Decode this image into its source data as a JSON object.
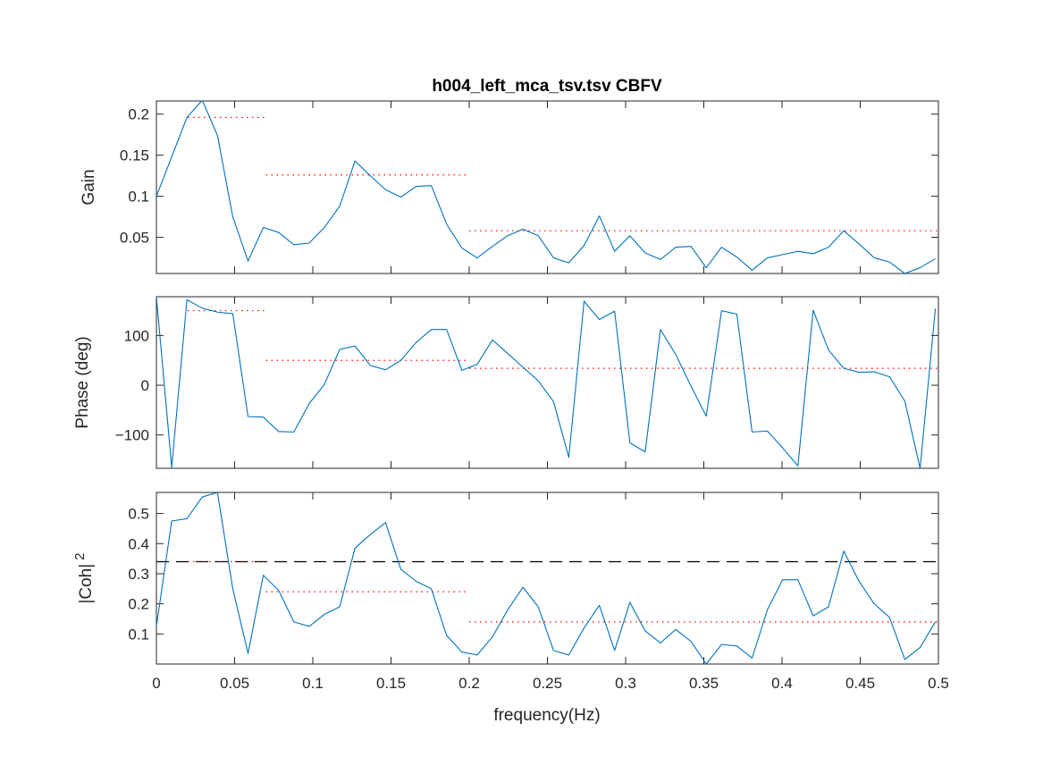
{
  "chart_data": {
    "type": "line",
    "title": "h004_left_mca_tsv.tsv CBFV",
    "xlabel": "frequency(Hz)",
    "xlim": [
      0,
      0.5
    ],
    "xticks": [
      0,
      0.05,
      0.1,
      0.15,
      0.2,
      0.25,
      0.3,
      0.35,
      0.4,
      0.45,
      0.5
    ],
    "xtick_labels": [
      "0",
      "0.05",
      "0.1",
      "0.15",
      "0.2",
      "0.25",
      "0.3",
      "0.35",
      "0.4",
      "0.45",
      "0.5"
    ],
    "x": [
      0,
      0.00977,
      0.01953,
      0.0293,
      0.03906,
      0.04883,
      0.05859,
      0.06836,
      0.07813,
      0.08789,
      0.09766,
      0.10742,
      0.11719,
      0.12695,
      0.13672,
      0.14648,
      0.15625,
      0.16602,
      0.17578,
      0.18555,
      0.19531,
      0.20508,
      0.21484,
      0.22461,
      0.23438,
      0.24414,
      0.25391,
      0.26367,
      0.27344,
      0.2832,
      0.29297,
      0.30273,
      0.3125,
      0.32227,
      0.33203,
      0.3418,
      0.35156,
      0.36133,
      0.37109,
      0.38086,
      0.39063,
      0.40039,
      0.41016,
      0.41992,
      0.42969,
      0.43945,
      0.44922,
      0.45898,
      0.46875,
      0.47852,
      0.48828,
      0.49805
    ],
    "panels": [
      {
        "ylabel": "Gain",
        "ylim": [
          0.006,
          0.216
        ],
        "yticks": [
          0.05,
          0.1,
          0.15,
          0.2
        ],
        "ytick_labels": [
          "0.05",
          "0.1",
          "0.15",
          "0.2"
        ],
        "series": [
          {
            "color": "#0072BD",
            "values": [
              0.1,
              0.148,
              0.196,
              0.217,
              0.174,
              0.075,
              0.021,
              0.062,
              0.056,
              0.041,
              0.043,
              0.062,
              0.088,
              0.143,
              0.125,
              0.108,
              0.099,
              0.112,
              0.113,
              0.066,
              0.037,
              0.025,
              0.039,
              0.052,
              0.06,
              0.052,
              0.025,
              0.019,
              0.04,
              0.076,
              0.033,
              0.052,
              0.031,
              0.023,
              0.038,
              0.039,
              0.013,
              0.038,
              0.026,
              0.01,
              0.025,
              0.029,
              0.033,
              0.03,
              0.038,
              0.058,
              0.042,
              0.025,
              0.02,
              0.006,
              0.013,
              0.024
            ]
          }
        ],
        "band_means": [
          {
            "x0": 0.02,
            "x1": 0.07,
            "y": 0.196
          },
          {
            "x0": 0.07,
            "x1": 0.2,
            "y": 0.126
          },
          {
            "x0": 0.2,
            "x1": 0.5,
            "y": 0.058
          }
        ]
      },
      {
        "ylabel": "Phase (deg)",
        "ylim": [
          -167,
          178
        ],
        "yticks": [
          -100,
          0,
          100
        ],
        "ytick_labels": [
          "−100",
          "0",
          "100"
        ],
        "series": [
          {
            "color": "#0072BD",
            "values": [
              178,
              -165,
              172,
              155,
              147,
              144,
              -63,
              -64,
              -93,
              -94,
              -37,
              2,
              72,
              79,
              40,
              31,
              50,
              86,
              112,
              112,
              30,
              42,
              91,
              64,
              36,
              9,
              -33,
              -145,
              169,
              132,
              149,
              -116,
              -134,
              112,
              62,
              -2,
              -62,
              150,
              143,
              -94,
              -92,
              -126,
              -162,
              151,
              71,
              34,
              26,
              27,
              17,
              -32,
              -167,
              154
            ]
          }
        ],
        "band_means": [
          {
            "x0": 0.02,
            "x1": 0.07,
            "y": 150
          },
          {
            "x0": 0.07,
            "x1": 0.2,
            "y": 50
          },
          {
            "x0": 0.2,
            "x1": 0.5,
            "y": 34
          }
        ]
      },
      {
        "ylabel": "|Coh|",
        "ylabel_superscript": "2",
        "ylim": [
          0,
          0.57
        ],
        "yticks": [
          0.1,
          0.2,
          0.3,
          0.4,
          0.5
        ],
        "ytick_labels": [
          "0.1",
          "0.2",
          "0.3",
          "0.4",
          "0.5"
        ],
        "threshold": 0.34,
        "series": [
          {
            "color": "#0072BD",
            "values": [
              0.125,
              0.475,
              0.483,
              0.555,
              0.57,
              0.25,
              0.035,
              0.295,
              0.245,
              0.14,
              0.125,
              0.165,
              0.19,
              0.385,
              0.43,
              0.47,
              0.315,
              0.275,
              0.25,
              0.095,
              0.04,
              0.03,
              0.09,
              0.18,
              0.255,
              0.19,
              0.045,
              0.03,
              0.12,
              0.195,
              0.045,
              0.205,
              0.11,
              0.07,
              0.115,
              0.075,
              0.0,
              0.065,
              0.06,
              0.02,
              0.18,
              0.28,
              0.28,
              0.16,
              0.19,
              0.375,
              0.275,
              0.2,
              0.155,
              0.015,
              0.055,
              0.14
            ]
          }
        ],
        "band_means": [
          {
            "x0": 0.02,
            "x1": 0.07,
            "y": 0.34
          },
          {
            "x0": 0.07,
            "x1": 0.2,
            "y": 0.24
          },
          {
            "x0": 0.2,
            "x1": 0.5,
            "y": 0.14
          }
        ]
      }
    ]
  }
}
